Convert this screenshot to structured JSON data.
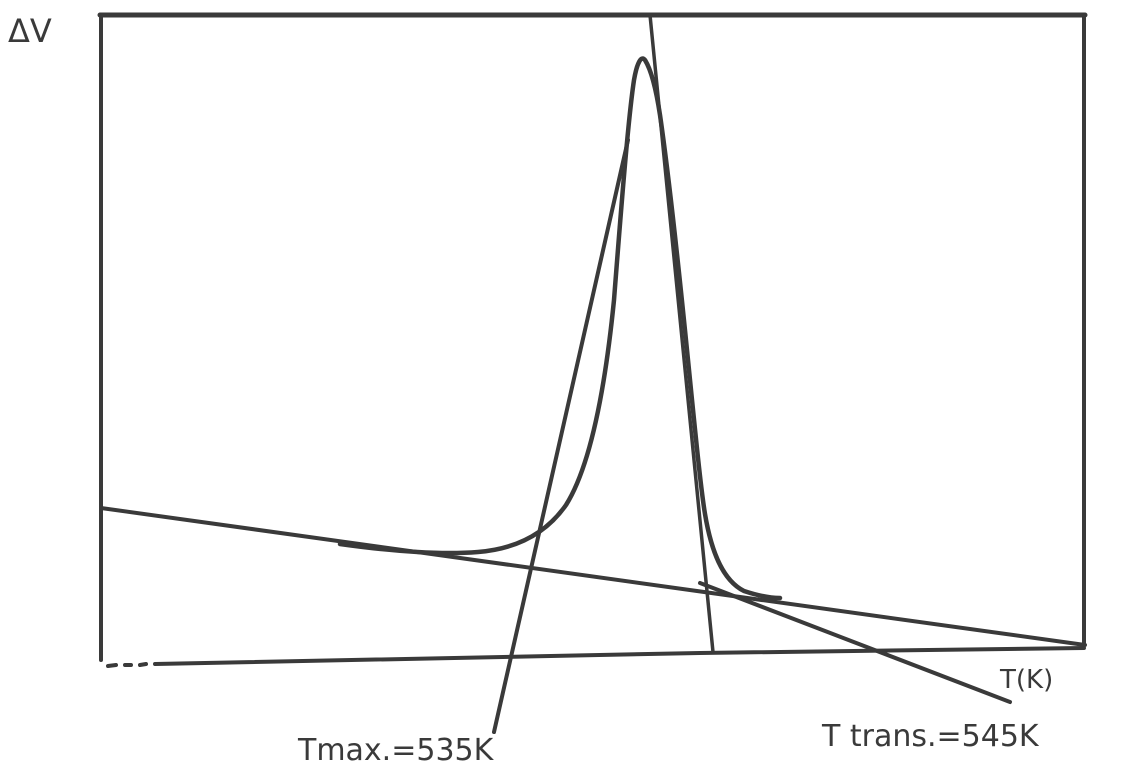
{
  "chart_data": {
    "type": "line",
    "ylabel": "ΔV",
    "xlabel": "T(K)",
    "grid": false,
    "series": [
      {
        "x": [
          500,
          505,
          510,
          515,
          520,
          525,
          530,
          533,
          535,
          537,
          540,
          542,
          544,
          546,
          548,
          550,
          555,
          560
        ],
        "y": [
          0.22,
          0.21,
          0.2,
          0.19,
          0.19,
          0.21,
          0.3,
          0.55,
          0.95,
          0.75,
          0.4,
          0.25,
          0.15,
          0.1,
          0.08,
          0.07,
          0.06,
          0.05
        ]
      }
    ],
    "annotations": {
      "tmax_label": "Tmax.=535K",
      "ttrans_label": "T trans.=545K"
    }
  }
}
